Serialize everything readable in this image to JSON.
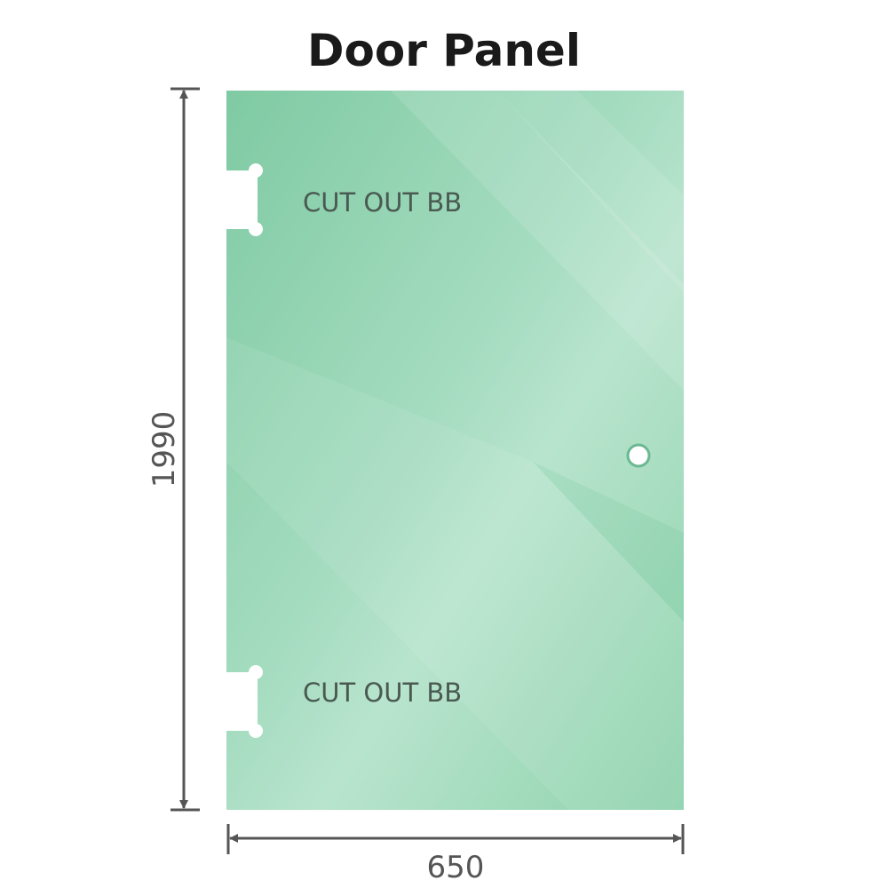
{
  "title": "Door Panel",
  "panel": {
    "color": "#86cea8",
    "cutouts": [
      {
        "label": "CUT OUT BB"
      },
      {
        "label": "CUT OUT BB"
      }
    ],
    "hole": "handle-hole"
  },
  "dimensions": {
    "height": "1990",
    "width": "650",
    "line_color": "#555555"
  }
}
